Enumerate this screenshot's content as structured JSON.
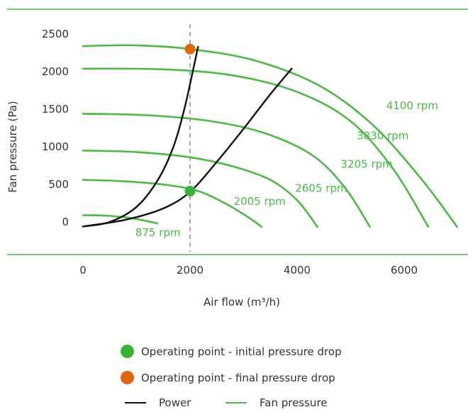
{
  "chart_data": {
    "type": "line",
    "xlabel": "Air flow (m³/h)",
    "ylabel": "Fan pressure (Pa)",
    "xlim": [
      0,
      7000
    ],
    "ylim": [
      0,
      2500
    ],
    "x_ticks": [
      "0",
      "2000",
      "4000",
      "6000"
    ],
    "y_ticks": [
      "2500",
      "2000",
      "1500",
      "1000",
      "500",
      "0"
    ],
    "x_tick_values": [
      0,
      2000,
      4000,
      6000
    ],
    "y_tick_values": [
      2500,
      2000,
      1500,
      1000,
      500,
      0
    ],
    "series": [
      {
        "name": "875 rpm",
        "kind": "fan",
        "points": [
          [
            0,
            90
          ],
          [
            400,
            85
          ],
          [
            800,
            60
          ],
          [
            1100,
            25
          ],
          [
            1390,
            -20
          ]
        ]
      },
      {
        "name": "2005 rpm",
        "kind": "fan",
        "points": [
          [
            0,
            560
          ],
          [
            800,
            540
          ],
          [
            1600,
            490
          ],
          [
            2200,
            400
          ],
          [
            2700,
            230
          ],
          [
            3050,
            80
          ],
          [
            3340,
            -65
          ]
        ]
      },
      {
        "name": "2605 rpm",
        "kind": "fan",
        "points": [
          [
            0,
            950
          ],
          [
            1000,
            930
          ],
          [
            2000,
            860
          ],
          [
            2800,
            740
          ],
          [
            3500,
            560
          ],
          [
            4000,
            290
          ],
          [
            4380,
            -65
          ]
        ]
      },
      {
        "name": "3205 rpm",
        "kind": "fan",
        "points": [
          [
            0,
            1440
          ],
          [
            1200,
            1420
          ],
          [
            2400,
            1340
          ],
          [
            3400,
            1180
          ],
          [
            4300,
            880
          ],
          [
            4900,
            450
          ],
          [
            5360,
            -65
          ]
        ]
      },
      {
        "name": "3830 rpm",
        "kind": "fan",
        "points": [
          [
            0,
            2040
          ],
          [
            1500,
            2030
          ],
          [
            2800,
            1950
          ],
          [
            4000,
            1730
          ],
          [
            5000,
            1340
          ],
          [
            5800,
            700
          ],
          [
            6450,
            -65
          ]
        ]
      },
      {
        "name": "4100 rpm",
        "kind": "fan",
        "points": [
          [
            0,
            2340
          ],
          [
            1000,
            2350
          ],
          [
            2000,
            2300
          ],
          [
            3200,
            2150
          ],
          [
            4400,
            1820
          ],
          [
            5400,
            1300
          ],
          [
            6300,
            590
          ],
          [
            6990,
            -65
          ]
        ]
      },
      {
        "kind": "power",
        "points": [
          [
            0,
            -60
          ],
          [
            500,
            0
          ],
          [
            1000,
            200
          ],
          [
            1400,
            560
          ],
          [
            1700,
            1020
          ],
          [
            1900,
            1520
          ],
          [
            2050,
            2000
          ],
          [
            2150,
            2330
          ]
        ]
      },
      {
        "kind": "power",
        "points": [
          [
            0,
            -60
          ],
          [
            800,
            30
          ],
          [
            1500,
            180
          ],
          [
            2000,
            400
          ],
          [
            2500,
            800
          ],
          [
            3000,
            1240
          ],
          [
            3500,
            1700
          ],
          [
            3900,
            2040
          ]
        ]
      }
    ],
    "operating_points": [
      {
        "type": "initial",
        "x": 2000,
        "y": 410
      },
      {
        "type": "final",
        "x": 2000,
        "y": 2300
      }
    ],
    "operating_flow": 2000,
    "label_anchors": [
      [
        6150,
        1500
      ],
      [
        5600,
        1100
      ],
      [
        5300,
        720
      ],
      [
        4450,
        400
      ],
      [
        3300,
        225
      ],
      [
        1400,
        -190
      ]
    ],
    "label_order": [
      "4100 rpm",
      "3830 rpm",
      "3205 rpm",
      "2605 rpm",
      "2005 rpm",
      "875 rpm"
    ],
    "grid": false,
    "legend_position": "bottom"
  },
  "colors": {
    "fan_pressure": "#4cb944",
    "power": "#111111",
    "initial_point": "#3bb33b",
    "final_point": "#e0650f",
    "dashed_line": "#aaaaaa",
    "border": "#4cb944"
  },
  "legend": {
    "initial": "Operating point - initial pressure drop",
    "final": "Operating point - final pressure drop",
    "power": "Power",
    "fan": "Fan pressure"
  }
}
